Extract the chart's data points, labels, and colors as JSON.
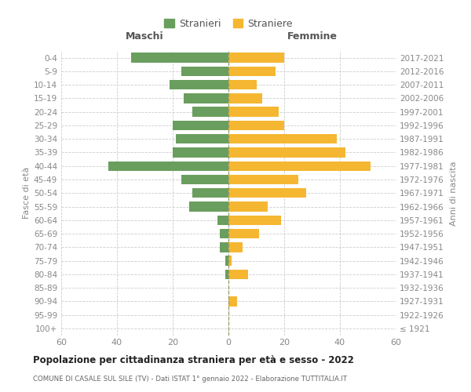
{
  "age_groups": [
    "100+",
    "95-99",
    "90-94",
    "85-89",
    "80-84",
    "75-79",
    "70-74",
    "65-69",
    "60-64",
    "55-59",
    "50-54",
    "45-49",
    "40-44",
    "35-39",
    "30-34",
    "25-29",
    "20-24",
    "15-19",
    "10-14",
    "5-9",
    "0-4"
  ],
  "birth_years": [
    "≤ 1921",
    "1922-1926",
    "1927-1931",
    "1932-1936",
    "1937-1941",
    "1942-1946",
    "1947-1951",
    "1952-1956",
    "1957-1961",
    "1962-1966",
    "1967-1971",
    "1972-1976",
    "1977-1981",
    "1982-1986",
    "1987-1991",
    "1992-1996",
    "1997-2001",
    "2002-2006",
    "2007-2011",
    "2012-2016",
    "2017-2021"
  ],
  "males": [
    0,
    0,
    0,
    0,
    1,
    1,
    3,
    3,
    4,
    14,
    13,
    17,
    43,
    20,
    19,
    20,
    13,
    16,
    21,
    17,
    35
  ],
  "females": [
    0,
    0,
    3,
    0,
    7,
    1,
    5,
    11,
    19,
    14,
    28,
    25,
    51,
    42,
    39,
    20,
    18,
    12,
    10,
    17,
    20
  ],
  "male_color": "#6a9e5e",
  "female_color": "#f5b731",
  "background_color": "#ffffff",
  "grid_color": "#cccccc",
  "title": "Popolazione per cittadinanza straniera per età e sesso - 2022",
  "subtitle": "COMUNE DI CASALE SUL SILE (TV) - Dati ISTAT 1° gennaio 2022 - Elaborazione TUTTITALIA.IT",
  "xlabel_left": "Maschi",
  "xlabel_right": "Femmine",
  "ylabel_left": "Fasce di età",
  "ylabel_right": "Anni di nascita",
  "legend_male": "Stranieri",
  "legend_female": "Straniere",
  "xlim": 60
}
